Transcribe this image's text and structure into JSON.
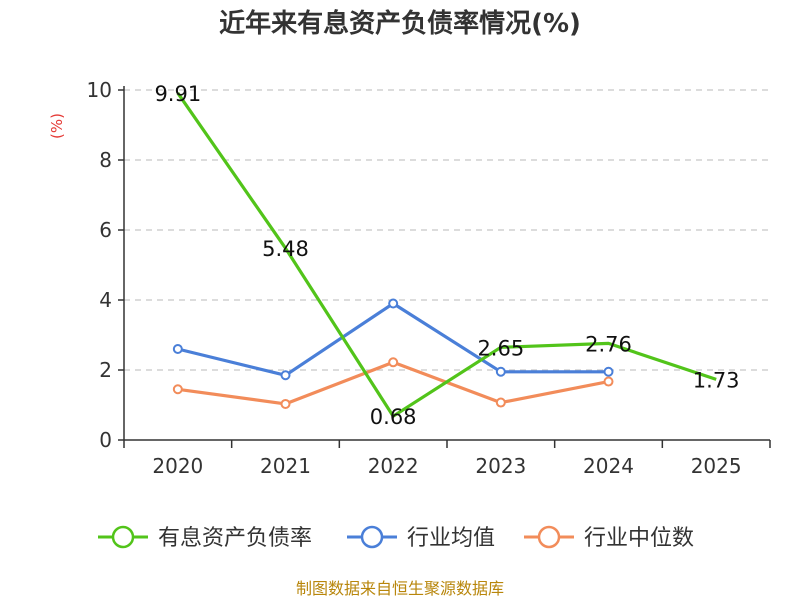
{
  "chart_data": {
    "type": "line",
    "title": "近年来有息资产负债率情况(%)",
    "ylabel": "(%)",
    "xlabel": "",
    "categories": [
      "2020",
      "2021",
      "2022",
      "2023",
      "2024",
      "2025"
    ],
    "ylim": [
      0,
      10
    ],
    "yticks": [
      0,
      2,
      4,
      6,
      8,
      10
    ],
    "grid": true,
    "legend_position": "bottom",
    "series": [
      {
        "name": "有息资产负债率",
        "color": "#52c41a",
        "values": [
          9.91,
          5.48,
          0.68,
          2.65,
          2.76,
          1.73
        ],
        "labels": [
          "9.91",
          "5.48",
          "0.68",
          "2.65",
          "2.76",
          "1.73"
        ],
        "markers": false
      },
      {
        "name": "行业均值",
        "color": "#4a7fd8",
        "values": [
          2.6,
          1.85,
          3.9,
          1.95,
          1.95,
          null
        ],
        "markers": true
      },
      {
        "name": "行业中位数",
        "color": "#f28c5a",
        "values": [
          1.45,
          1.03,
          2.22,
          1.07,
          1.67,
          null
        ],
        "markers": true
      }
    ],
    "source": "制图数据来自恒生聚源数据库"
  }
}
